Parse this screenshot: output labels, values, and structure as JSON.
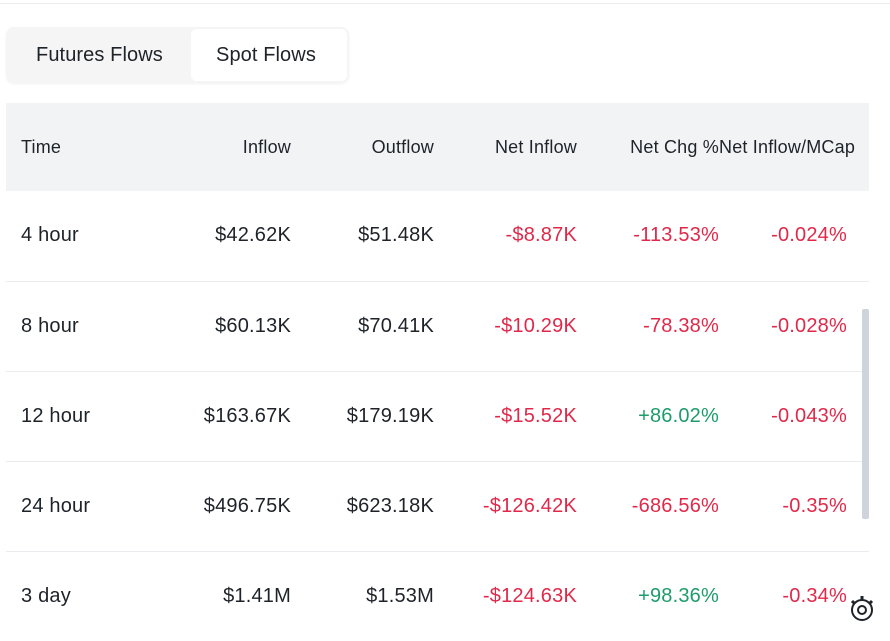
{
  "tabs": [
    {
      "label": "Futures Flows",
      "active": false
    },
    {
      "label": "Spot Flows",
      "active": true
    }
  ],
  "table": {
    "headers": [
      "Time",
      "Inflow",
      "Outflow",
      "Net Inflow",
      "Net Chg %",
      "Net Inflow/MCap"
    ],
    "rows": [
      {
        "time": "4 hour",
        "inflow": "$42.62K",
        "outflow": "$51.48K",
        "net_inflow": "-$8.87K",
        "net_chg": "-113.53%",
        "net_mcap": "-0.024%"
      },
      {
        "time": "8 hour",
        "inflow": "$60.13K",
        "outflow": "$70.41K",
        "net_inflow": "-$10.29K",
        "net_chg": "-78.38%",
        "net_mcap": "-0.028%"
      },
      {
        "time": "12 hour",
        "inflow": "$163.67K",
        "outflow": "$179.19K",
        "net_inflow": "-$15.52K",
        "net_chg": "+86.02%",
        "net_mcap": "-0.043%"
      },
      {
        "time": "24 hour",
        "inflow": "$496.75K",
        "outflow": "$623.18K",
        "net_inflow": "-$126.42K",
        "net_chg": "-686.56%",
        "net_mcap": "-0.35%"
      },
      {
        "time": "3 day",
        "inflow": "$1.41M",
        "outflow": "$1.53M",
        "net_inflow": "-$124.63K",
        "net_chg": "+98.36%",
        "net_mcap": "-0.34%"
      }
    ]
  },
  "colors": {
    "negative": "#e0294a",
    "positive": "#1e9c6b"
  },
  "icons": {
    "corner": "settings-icon"
  }
}
